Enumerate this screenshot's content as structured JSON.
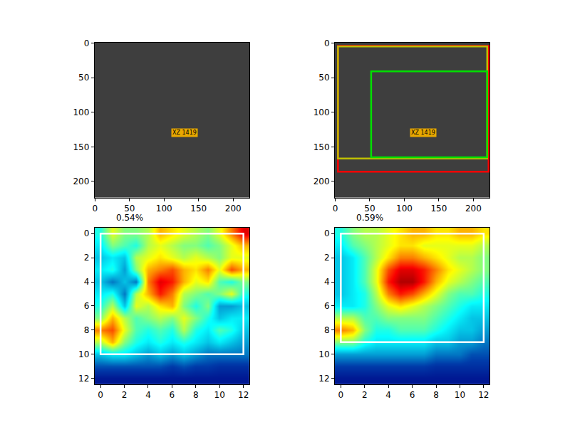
{
  "chart_data": [
    {
      "type": "image",
      "xlim": [
        -0.5,
        223.5
      ],
      "ylim": [
        223.5,
        -0.5
      ],
      "xticks": [
        0,
        50,
        100,
        150,
        200
      ],
      "yticks": [
        0,
        50,
        100,
        150,
        200
      ],
      "annotations": [
        {
          "text": "XZ 1419",
          "x": 130,
          "y": 130
        }
      ]
    },
    {
      "type": "image",
      "xlim": [
        -0.5,
        223.5
      ],
      "ylim": [
        223.5,
        -0.5
      ],
      "xticks": [
        0,
        50,
        100,
        150,
        200
      ],
      "yticks": [
        0,
        50,
        100,
        150,
        200
      ],
      "boxes": [
        {
          "color": "#ff0000",
          "x0": 4,
          "y0": 4,
          "x1": 222,
          "y1": 186
        },
        {
          "color": "#bfbf00",
          "x0": 4,
          "y0": 5,
          "x1": 220,
          "y1": 167
        },
        {
          "color": "#00e000",
          "x0": 52,
          "y0": 41,
          "x1": 220,
          "y1": 165
        }
      ],
      "annotations": [
        {
          "text": "XZ 1419",
          "x": 127,
          "y": 130
        }
      ]
    },
    {
      "type": "heatmap",
      "title": "0.54%",
      "xlim": [
        -0.5,
        12.5
      ],
      "ylim": [
        12.5,
        -0.5
      ],
      "xticks": [
        0,
        2,
        4,
        6,
        8,
        10,
        12
      ],
      "yticks": [
        0,
        2,
        4,
        6,
        8,
        10,
        12
      ],
      "zlim": [
        0,
        1
      ],
      "cells": [
        [
          0.4,
          0.6,
          0.5,
          0.5,
          0.55,
          0.7,
          0.65,
          0.6,
          0.55,
          0.5,
          0.6,
          0.75,
          0.9
        ],
        [
          0.35,
          0.5,
          0.45,
          0.4,
          0.55,
          0.6,
          0.55,
          0.5,
          0.5,
          0.45,
          0.5,
          0.6,
          0.7
        ],
        [
          0.3,
          0.35,
          0.3,
          0.55,
          0.6,
          0.65,
          0.6,
          0.55,
          0.6,
          0.55,
          0.5,
          0.6,
          0.6
        ],
        [
          0.35,
          0.4,
          0.25,
          0.5,
          0.7,
          0.75,
          0.8,
          0.7,
          0.65,
          0.75,
          0.6,
          0.8,
          0.7
        ],
        [
          0.3,
          0.2,
          0.3,
          0.2,
          0.75,
          0.9,
          0.85,
          0.7,
          0.6,
          0.65,
          0.45,
          0.4,
          0.5
        ],
        [
          0.35,
          0.4,
          0.2,
          0.55,
          0.7,
          0.85,
          0.75,
          0.55,
          0.5,
          0.45,
          0.5,
          0.6,
          0.4
        ],
        [
          0.4,
          0.55,
          0.3,
          0.6,
          0.55,
          0.65,
          0.7,
          0.5,
          0.4,
          0.5,
          0.25,
          0.25,
          0.3
        ],
        [
          0.5,
          0.7,
          0.55,
          0.45,
          0.5,
          0.55,
          0.5,
          0.6,
          0.5,
          0.4,
          0.3,
          0.35,
          0.35
        ],
        [
          0.75,
          0.8,
          0.6,
          0.45,
          0.4,
          0.45,
          0.4,
          0.55,
          0.4,
          0.35,
          0.45,
          0.4,
          0.3
        ],
        [
          0.55,
          0.7,
          0.5,
          0.4,
          0.35,
          0.4,
          0.35,
          0.4,
          0.35,
          0.3,
          0.35,
          0.3,
          0.25
        ],
        [
          0.3,
          0.35,
          0.35,
          0.3,
          0.25,
          0.3,
          0.25,
          0.3,
          0.25,
          0.2,
          0.2,
          0.2,
          0.2
        ],
        [
          0.15,
          0.15,
          0.15,
          0.15,
          0.15,
          0.15,
          0.12,
          0.15,
          0.12,
          0.12,
          0.1,
          0.1,
          0.1
        ],
        [
          0.05,
          0.05,
          0.05,
          0.05,
          0.05,
          0.05,
          0.05,
          0.05,
          0.05,
          0.05,
          0.05,
          0.05,
          0.05
        ]
      ],
      "boxes": [
        {
          "color": "#ffffff",
          "x0": 0,
          "y0": 0,
          "x1": 12,
          "y1": 10
        }
      ]
    },
    {
      "type": "heatmap",
      "title": "0.59%",
      "xlim": [
        -0.5,
        12.5
      ],
      "ylim": [
        12.5,
        -0.5
      ],
      "xticks": [
        0,
        2,
        4,
        6,
        8,
        10,
        12
      ],
      "yticks": [
        0,
        2,
        4,
        6,
        8,
        10,
        12
      ],
      "zlim": [
        0,
        1
      ],
      "cells": [
        [
          0.4,
          0.5,
          0.55,
          0.55,
          0.6,
          0.65,
          0.7,
          0.7,
          0.65,
          0.65,
          0.7,
          0.7,
          0.65
        ],
        [
          0.35,
          0.45,
          0.5,
          0.55,
          0.6,
          0.65,
          0.65,
          0.6,
          0.6,
          0.6,
          0.6,
          0.6,
          0.55
        ],
        [
          0.3,
          0.35,
          0.45,
          0.55,
          0.65,
          0.75,
          0.75,
          0.7,
          0.65,
          0.6,
          0.55,
          0.55,
          0.5
        ],
        [
          0.3,
          0.35,
          0.45,
          0.6,
          0.8,
          0.9,
          0.9,
          0.85,
          0.75,
          0.65,
          0.6,
          0.55,
          0.5
        ],
        [
          0.3,
          0.35,
          0.45,
          0.6,
          0.85,
          0.95,
          0.95,
          0.85,
          0.7,
          0.6,
          0.55,
          0.5,
          0.45
        ],
        [
          0.3,
          0.35,
          0.4,
          0.55,
          0.75,
          0.85,
          0.8,
          0.7,
          0.6,
          0.5,
          0.45,
          0.45,
          0.4
        ],
        [
          0.35,
          0.35,
          0.4,
          0.5,
          0.6,
          0.65,
          0.6,
          0.55,
          0.5,
          0.45,
          0.4,
          0.35,
          0.35
        ],
        [
          0.55,
          0.55,
          0.45,
          0.45,
          0.5,
          0.5,
          0.5,
          0.5,
          0.45,
          0.4,
          0.35,
          0.3,
          0.3
        ],
        [
          0.75,
          0.7,
          0.5,
          0.4,
          0.4,
          0.45,
          0.45,
          0.45,
          0.4,
          0.35,
          0.3,
          0.3,
          0.25
        ],
        [
          0.5,
          0.5,
          0.4,
          0.35,
          0.35,
          0.35,
          0.35,
          0.35,
          0.3,
          0.3,
          0.25,
          0.25,
          0.2
        ],
        [
          0.25,
          0.25,
          0.25,
          0.25,
          0.25,
          0.25,
          0.25,
          0.25,
          0.2,
          0.2,
          0.2,
          0.15,
          0.15
        ],
        [
          0.12,
          0.12,
          0.12,
          0.12,
          0.12,
          0.12,
          0.12,
          0.12,
          0.1,
          0.1,
          0.1,
          0.1,
          0.1
        ],
        [
          0.05,
          0.05,
          0.05,
          0.05,
          0.05,
          0.05,
          0.05,
          0.05,
          0.05,
          0.05,
          0.05,
          0.05,
          0.05
        ]
      ],
      "boxes": [
        {
          "color": "#ffffff",
          "x0": 0,
          "y0": 0,
          "x1": 12,
          "y1": 9
        }
      ]
    }
  ]
}
